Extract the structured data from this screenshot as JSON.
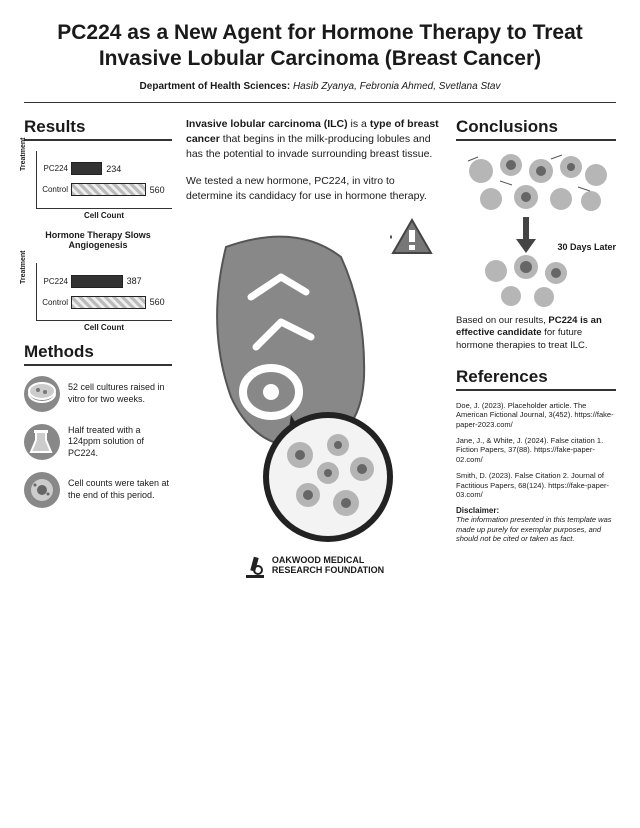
{
  "title": "PC224 as a New Agent for Hormone Therapy to Treat Invasive Lobular Carcinoma (Breast Cancer)",
  "department_label": "Department of Health Sciences:",
  "authors": "Hasib Zyanya, Febronia Ahmed, Svetlana Stav",
  "sections": {
    "results": "Results",
    "methods": "Methods",
    "conclusions": "Conclusions",
    "references": "References"
  },
  "charts": {
    "ylabel": "Treatment",
    "xlabel": "Cell Count",
    "caption": "Hormone Therapy Slows Angiogenesis",
    "max": 600,
    "chart1": {
      "bars": [
        {
          "label": "PC224",
          "value": 234,
          "style": "dark"
        },
        {
          "label": "Control",
          "value": 560,
          "style": "hatch"
        }
      ]
    },
    "chart2": {
      "bars": [
        {
          "label": "PC224",
          "value": 387,
          "style": "dark"
        },
        {
          "label": "Control",
          "value": 560,
          "style": "hatch"
        }
      ]
    },
    "colors": {
      "dark": "#333333",
      "hatch_a": "#bbbbbb",
      "hatch_b": "#eeeeee",
      "axis": "#333333"
    }
  },
  "methods": [
    {
      "icon": "petri-dish-icon",
      "text": "52 cell cultures raised  in vitro for two weeks."
    },
    {
      "icon": "beaker-icon",
      "text": "Half treated with a 124ppm solution of PC224."
    },
    {
      "icon": "cell-icon",
      "text": "Cell counts were taken at the end of this period."
    }
  ],
  "intro": {
    "p1_bold1": "Invasive lobular carcinoma (ILC)",
    "p1_mid": " is a ",
    "p1_bold2": "type of breast cancer",
    "p1_end": " that begins in the milk-producing lobules and has the potential to invade surrounding breast tissue.",
    "p2": "We tested a new hormone, PC224, in vitro to determine its candidacy for use in hormone therapy."
  },
  "conclusions": {
    "days_label": "30 Days Later",
    "text_pre": "Based on our results, ",
    "text_bold": "PC224 is an effective candidate",
    "text_post": " for future hormone therapies to treat ILC."
  },
  "references": [
    "Doe, J. (2023). Placeholder article. The American Fictional Journal, 3(452). https://fake-paper-2023.com/",
    "Jane, J., & White, J. (2024). False citation 1. Fiction Papers, 37(88). https://fake-paper-02.com/",
    "Smith, D. (2023). False Citation 2. Journal of Factitious Papers, 68(124). https://fake-paper-03.com/"
  ],
  "disclaimer_label": "Disclaimer:",
  "disclaimer": "The information presented in this template was made up purely for exemplar purposes, and should not be cited or taken as fact.",
  "footer": {
    "line1": "OAKWOOD MEDICAL",
    "line2": "RESEARCH FOUNDATION"
  }
}
